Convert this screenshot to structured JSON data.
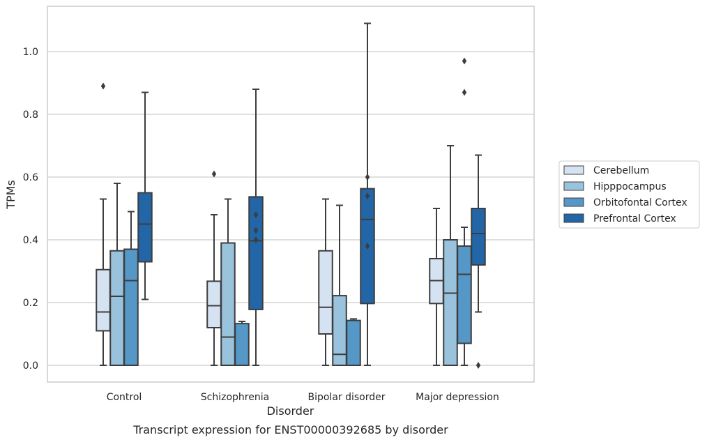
{
  "chart_data": {
    "type": "box",
    "caption": "Transcript expression for ENST00000392685 by disorder",
    "xlabel": "Disorder",
    "ylabel": "TPMs",
    "ylim": [
      -0.05,
      1.145
    ],
    "yticks": [
      0.0,
      0.2,
      0.4,
      0.6,
      0.8,
      1.0
    ],
    "ytick_labels": [
      "0.0",
      "0.2",
      "0.4",
      "0.6",
      "0.8",
      "1.0"
    ],
    "grid": true,
    "legend_position": "right",
    "categories": [
      "Control",
      "Schizophrenia",
      "Bipolar disorder",
      "Major depression"
    ],
    "series": [
      {
        "name": "Cerebellum",
        "color": "#d5e2f1",
        "boxes": [
          {
            "whislo": 0.0,
            "q1": 0.11,
            "med": 0.17,
            "q3": 0.305,
            "whishi": 0.53,
            "fliers": [
              0.89
            ]
          },
          {
            "whislo": 0.0,
            "q1": 0.12,
            "med": 0.19,
            "q3": 0.268,
            "whishi": 0.48,
            "fliers": [
              0.61
            ]
          },
          {
            "whislo": 0.0,
            "q1": 0.1,
            "med": 0.185,
            "q3": 0.365,
            "whishi": 0.53,
            "fliers": []
          },
          {
            "whislo": 0.0,
            "q1": 0.197,
            "med": 0.27,
            "q3": 0.34,
            "whishi": 0.5,
            "fliers": []
          }
        ]
      },
      {
        "name": "Hipppocampus",
        "color": "#99c2dc",
        "boxes": [
          {
            "whislo": 0.0,
            "q1": 0.0,
            "med": 0.22,
            "q3": 0.365,
            "whishi": 0.58,
            "fliers": []
          },
          {
            "whislo": 0.0,
            "q1": 0.0,
            "med": 0.09,
            "q3": 0.39,
            "whishi": 0.53,
            "fliers": []
          },
          {
            "whislo": 0.0,
            "q1": 0.0,
            "med": 0.035,
            "q3": 0.222,
            "whishi": 0.51,
            "fliers": []
          },
          {
            "whislo": 0.0,
            "q1": 0.0,
            "med": 0.23,
            "q3": 0.4,
            "whishi": 0.7,
            "fliers": []
          }
        ]
      },
      {
        "name": "Orbitofontal Cortex",
        "color": "#5598c8",
        "boxes": [
          {
            "whislo": 0.0,
            "q1": 0.0,
            "med": 0.27,
            "q3": 0.37,
            "whishi": 0.49,
            "fliers": []
          },
          {
            "whislo": 0.0,
            "q1": 0.0,
            "med": 0.0,
            "q3": 0.133,
            "whishi": 0.14,
            "fliers": []
          },
          {
            "whislo": 0.0,
            "q1": 0.0,
            "med": 0.0,
            "q3": 0.143,
            "whishi": 0.148,
            "fliers": []
          },
          {
            "whislo": 0.0,
            "q1": 0.07,
            "med": 0.29,
            "q3": 0.38,
            "whishi": 0.44,
            "fliers": [
              0.87,
              0.97
            ]
          }
        ]
      },
      {
        "name": "Prefrontal Cortex",
        "color": "#2266a8",
        "boxes": [
          {
            "whislo": 0.21,
            "q1": 0.33,
            "med": 0.45,
            "q3": 0.55,
            "whishi": 0.87,
            "fliers": []
          },
          {
            "whislo": 0.0,
            "q1": 0.178,
            "med": 0.397,
            "q3": 0.537,
            "whishi": 0.88,
            "fliers": [
              0.4,
              0.43,
              0.48
            ]
          },
          {
            "whislo": 0.0,
            "q1": 0.197,
            "med": 0.465,
            "q3": 0.563,
            "whishi": 1.09,
            "fliers": [
              0.38,
              0.54,
              0.6
            ]
          },
          {
            "whislo": 0.17,
            "q1": 0.32,
            "med": 0.42,
            "q3": 0.5,
            "whishi": 0.67,
            "fliers": [
              0.0
            ]
          }
        ]
      }
    ]
  }
}
